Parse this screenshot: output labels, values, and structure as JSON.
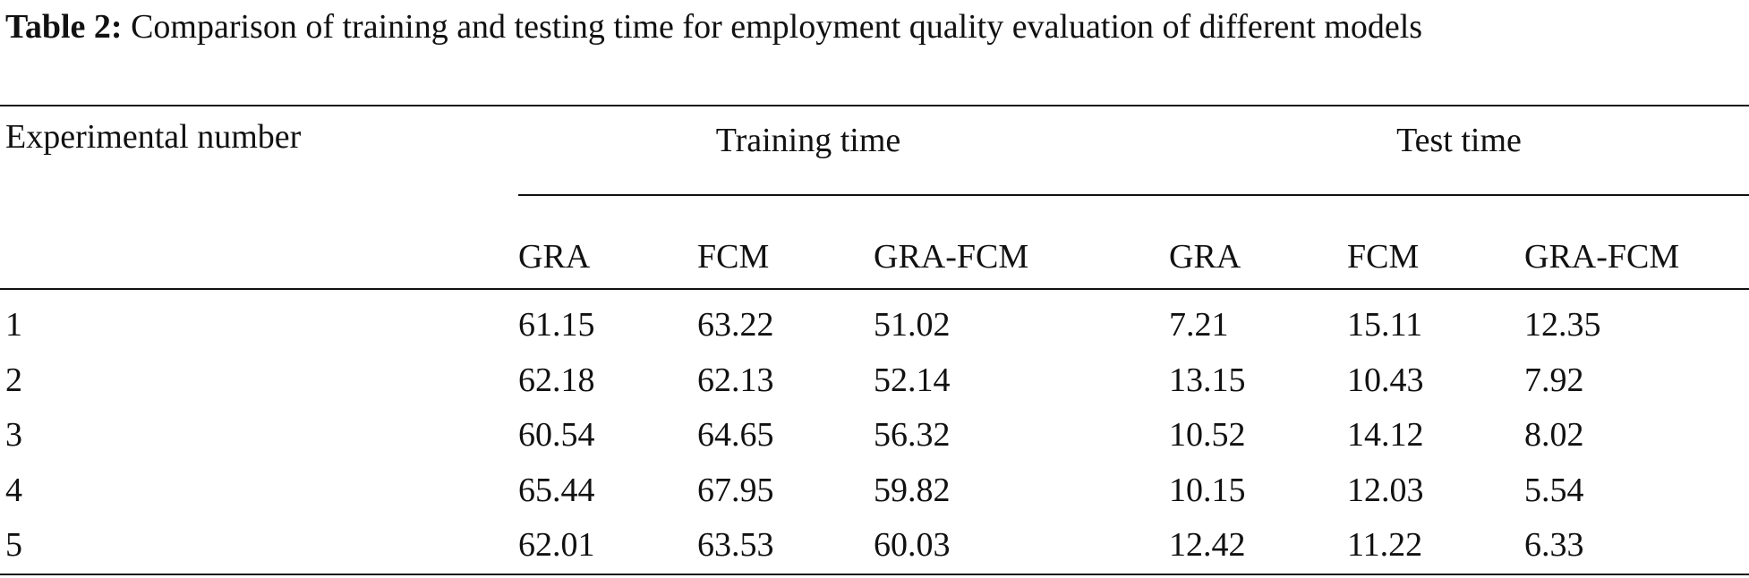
{
  "caption": {
    "label": "Table 2:",
    "text": "Comparison of training and testing time for employment quality evaluation of different models"
  },
  "table": {
    "row_header": "Experimental number",
    "groups": [
      "Training time",
      "Test time"
    ],
    "columns": [
      "GRA",
      "FCM",
      "GRA-FCM",
      "GRA",
      "FCM",
      "GRA-FCM"
    ],
    "rows": [
      [
        "1",
        "61.15",
        "63.22",
        "51.02",
        "7.21",
        "15.11",
        "12.35"
      ],
      [
        "2",
        "62.18",
        "62.13",
        "52.14",
        "13.15",
        "10.43",
        "7.92"
      ],
      [
        "3",
        "60.54",
        "64.65",
        "56.32",
        "10.52",
        "14.12",
        "8.02"
      ],
      [
        "4",
        "65.44",
        "67.95",
        "59.82",
        "10.15",
        "12.03",
        "5.54"
      ],
      [
        "5",
        "62.01",
        "63.53",
        "60.03",
        "12.42",
        "11.22",
        "6.33"
      ]
    ]
  }
}
